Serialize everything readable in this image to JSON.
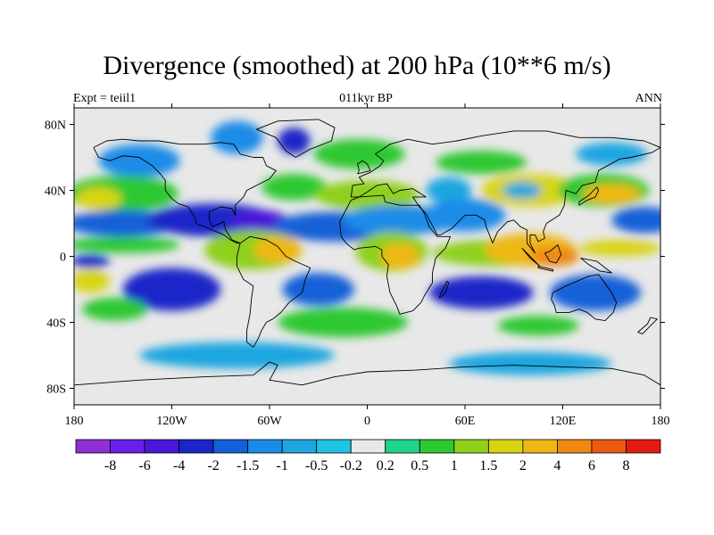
{
  "header": {
    "title": "Divergence (smoothed) at 200 hPa (10**6 m/s)",
    "left": "Expt = teiil1",
    "center": "011kyr BP",
    "right": "ANN"
  },
  "map": {
    "projection": "cylindrical-equidistant",
    "lon_range": [
      -180,
      180
    ],
    "lat_range": [
      -90,
      90
    ],
    "x_ticks": [
      {
        "lon": -180,
        "label": "180"
      },
      {
        "lon": -120,
        "label": "120W"
      },
      {
        "lon": -60,
        "label": "60W"
      },
      {
        "lon": 0,
        "label": "0"
      },
      {
        "lon": 60,
        "label": "60E"
      },
      {
        "lon": 120,
        "label": "120E"
      },
      {
        "lon": 180,
        "label": "180"
      }
    ],
    "y_ticks": [
      {
        "lat": 80,
        "label": "80N"
      },
      {
        "lat": 40,
        "label": "40N"
      },
      {
        "lat": 0,
        "label": "0"
      },
      {
        "lat": -40,
        "label": "40S"
      },
      {
        "lat": -80,
        "label": "80S"
      }
    ]
  },
  "colorbar": {
    "colors": [
      "#8f2fd8",
      "#6a1fe8",
      "#4a16d8",
      "#1c25c8",
      "#1360d8",
      "#1a8ce8",
      "#1fa6e0",
      "#1ec4e4",
      "#e8e8e8",
      "#1fd48c",
      "#2ec830",
      "#8ed01c",
      "#d8d412",
      "#eeb814",
      "#ee8812",
      "#ea5a10",
      "#e41a10"
    ],
    "labels": [
      "-8",
      "-6",
      "-4",
      "-2",
      "-1.5",
      "-1",
      "-0.5",
      "-0.2",
      "0.2",
      "0.5",
      "1",
      "1.5",
      "2",
      "4",
      "6",
      "8"
    ]
  },
  "field_blobs": [
    {
      "lon": -140,
      "lat": 58,
      "rx": 25,
      "ry": 10,
      "v": "-1"
    },
    {
      "lon": -80,
      "lat": 72,
      "rx": 16,
      "ry": 10,
      "v": "-1"
    },
    {
      "lon": -45,
      "lat": 70,
      "rx": 10,
      "ry": 8,
      "v": "-2"
    },
    {
      "lon": -5,
      "lat": 62,
      "rx": 28,
      "ry": 9,
      "v": "0.5"
    },
    {
      "lon": 70,
      "lat": 57,
      "rx": 28,
      "ry": 7,
      "v": "0.5"
    },
    {
      "lon": 150,
      "lat": 62,
      "rx": 22,
      "ry": 7,
      "v": "-0.5"
    },
    {
      "lon": -150,
      "lat": 38,
      "rx": 34,
      "ry": 11,
      "v": "0.5"
    },
    {
      "lon": -165,
      "lat": 35,
      "rx": 14,
      "ry": 7,
      "v": "1.5"
    },
    {
      "lon": -45,
      "lat": 42,
      "rx": 20,
      "ry": 8,
      "v": "0.5"
    },
    {
      "lon": 0,
      "lat": 37,
      "rx": 32,
      "ry": 9,
      "v": "1"
    },
    {
      "lon": 50,
      "lat": 40,
      "rx": 14,
      "ry": 8,
      "v": "-0.5"
    },
    {
      "lon": 100,
      "lat": 40,
      "rx": 30,
      "ry": 10,
      "v": "1.5"
    },
    {
      "lon": 95,
      "lat": 40,
      "rx": 12,
      "ry": 5,
      "v": "-0.5"
    },
    {
      "lon": 145,
      "lat": 40,
      "rx": 28,
      "ry": 10,
      "v": "0.5"
    },
    {
      "lon": 150,
      "lat": 38,
      "rx": 18,
      "ry": 6,
      "v": "2"
    },
    {
      "lon": -150,
      "lat": 20,
      "rx": 35,
      "ry": 8,
      "v": "-1.5"
    },
    {
      "lon": -95,
      "lat": 22,
      "rx": 40,
      "ry": 10,
      "v": "-2"
    },
    {
      "lon": -65,
      "lat": 20,
      "rx": 18,
      "ry": 8,
      "v": "-4"
    },
    {
      "lon": -20,
      "lat": 18,
      "rx": 38,
      "ry": 9,
      "v": "-1.5"
    },
    {
      "lon": 20,
      "lat": 22,
      "rx": 35,
      "ry": 9,
      "v": "-1"
    },
    {
      "lon": 60,
      "lat": 25,
      "rx": 25,
      "ry": 10,
      "v": "-1"
    },
    {
      "lon": 170,
      "lat": 22,
      "rx": 20,
      "ry": 8,
      "v": "-1.5"
    },
    {
      "lon": -150,
      "lat": 7,
      "rx": 35,
      "ry": 5,
      "v": "0.5"
    },
    {
      "lon": -70,
      "lat": 4,
      "rx": 30,
      "ry": 12,
      "v": "1"
    },
    {
      "lon": -55,
      "lat": 4,
      "rx": 15,
      "ry": 8,
      "v": "2"
    },
    {
      "lon": 15,
      "lat": 3,
      "rx": 22,
      "ry": 12,
      "v": "1"
    },
    {
      "lon": 20,
      "lat": 0,
      "rx": 12,
      "ry": 8,
      "v": "2"
    },
    {
      "lon": 80,
      "lat": 2,
      "rx": 40,
      "ry": 8,
      "v": "1"
    },
    {
      "lon": 100,
      "lat": 4,
      "rx": 28,
      "ry": 10,
      "v": "2"
    },
    {
      "lon": 115,
      "lat": 0,
      "rx": 15,
      "ry": 6,
      "v": "4"
    },
    {
      "lon": 155,
      "lat": 5,
      "rx": 25,
      "ry": 5,
      "v": "1.5"
    },
    {
      "lon": -170,
      "lat": -3,
      "rx": 12,
      "ry": 4,
      "v": "-2"
    },
    {
      "lon": -120,
      "lat": -20,
      "rx": 30,
      "ry": 13,
      "v": "-2"
    },
    {
      "lon": -30,
      "lat": -20,
      "rx": 22,
      "ry": 10,
      "v": "-1.5"
    },
    {
      "lon": 70,
      "lat": -22,
      "rx": 32,
      "ry": 10,
      "v": "-2"
    },
    {
      "lon": 140,
      "lat": -22,
      "rx": 28,
      "ry": 11,
      "v": "-1.5"
    },
    {
      "lon": -170,
      "lat": -15,
      "rx": 12,
      "ry": 7,
      "v": "1.5"
    },
    {
      "lon": -155,
      "lat": -32,
      "rx": 20,
      "ry": 7,
      "v": "0.5"
    },
    {
      "lon": -15,
      "lat": -40,
      "rx": 40,
      "ry": 9,
      "v": "0.5"
    },
    {
      "lon": 105,
      "lat": -42,
      "rx": 25,
      "ry": 6,
      "v": "0.5"
    },
    {
      "lon": -80,
      "lat": -60,
      "rx": 60,
      "ry": 8,
      "v": "-0.5"
    },
    {
      "lon": 100,
      "lat": -65,
      "rx": 50,
      "ry": 7,
      "v": "-0.5"
    }
  ],
  "coastlines": [
    [
      [
        -168,
        66
      ],
      [
        -160,
        70
      ],
      [
        -150,
        71
      ],
      [
        -140,
        70
      ],
      [
        -128,
        70
      ],
      [
        -115,
        68
      ],
      [
        -100,
        68
      ],
      [
        -90,
        69
      ],
      [
        -82,
        68
      ],
      [
        -78,
        62
      ],
      [
        -70,
        60
      ],
      [
        -64,
        60
      ],
      [
        -62,
        55
      ],
      [
        -56,
        52
      ],
      [
        -60,
        47
      ],
      [
        -66,
        44
      ],
      [
        -70,
        42
      ],
      [
        -74,
        40
      ],
      [
        -76,
        36
      ],
      [
        -81,
        31
      ],
      [
        -81,
        25
      ],
      [
        -83,
        29
      ],
      [
        -90,
        30
      ],
      [
        -97,
        27
      ],
      [
        -97,
        22
      ],
      [
        -95,
        18
      ],
      [
        -88,
        21
      ],
      [
        -87,
        16
      ],
      [
        -83,
        10
      ],
      [
        -78,
        8
      ],
      [
        -80,
        8
      ],
      [
        -84,
        10
      ],
      [
        -88,
        13
      ],
      [
        -95,
        16
      ],
      [
        -105,
        20
      ],
      [
        -106,
        24
      ],
      [
        -110,
        30
      ],
      [
        -116,
        32
      ],
      [
        -120,
        35
      ],
      [
        -124,
        40
      ],
      [
        -124,
        46
      ],
      [
        -127,
        50
      ],
      [
        -132,
        55
      ],
      [
        -140,
        60
      ],
      [
        -150,
        61
      ],
      [
        -158,
        58
      ],
      [
        -165,
        60
      ],
      [
        -168,
        66
      ]
    ],
    [
      [
        -78,
        8
      ],
      [
        -72,
        12
      ],
      [
        -62,
        10
      ],
      [
        -55,
        6
      ],
      [
        -50,
        0
      ],
      [
        -44,
        -3
      ],
      [
        -35,
        -7
      ],
      [
        -38,
        -14
      ],
      [
        -40,
        -22
      ],
      [
        -48,
        -28
      ],
      [
        -53,
        -34
      ],
      [
        -58,
        -38
      ],
      [
        -62,
        -40
      ],
      [
        -65,
        -45
      ],
      [
        -67,
        -50
      ],
      [
        -70,
        -55
      ],
      [
        -74,
        -52
      ],
      [
        -74,
        -45
      ],
      [
        -72,
        -35
      ],
      [
        -71,
        -25
      ],
      [
        -70,
        -18
      ],
      [
        -76,
        -14
      ],
      [
        -80,
        -6
      ],
      [
        -80,
        0
      ],
      [
        -78,
        8
      ]
    ],
    [
      [
        -55,
        82
      ],
      [
        -30,
        83
      ],
      [
        -20,
        78
      ],
      [
        -22,
        70
      ],
      [
        -35,
        65
      ],
      [
        -44,
        60
      ],
      [
        -50,
        64
      ],
      [
        -56,
        72
      ],
      [
        -68,
        77
      ],
      [
        -55,
        82
      ]
    ],
    [
      [
        -10,
        36
      ],
      [
        -9,
        43
      ],
      [
        -2,
        44
      ],
      [
        -5,
        48
      ],
      [
        2,
        51
      ],
      [
        8,
        55
      ],
      [
        10,
        58
      ],
      [
        5,
        62
      ],
      [
        14,
        68
      ],
      [
        25,
        71
      ],
      [
        40,
        68
      ],
      [
        55,
        70
      ],
      [
        70,
        73
      ],
      [
        90,
        76
      ],
      [
        110,
        76
      ],
      [
        130,
        72
      ],
      [
        150,
        72
      ],
      [
        170,
        70
      ],
      [
        180,
        66
      ],
      [
        175,
        63
      ],
      [
        162,
        60
      ],
      [
        155,
        59
      ],
      [
        142,
        52
      ],
      [
        140,
        45
      ],
      [
        132,
        43
      ],
      [
        128,
        38
      ],
      [
        122,
        40
      ],
      [
        121,
        31
      ],
      [
        118,
        25
      ],
      [
        110,
        20
      ],
      [
        108,
        15
      ],
      [
        109,
        11
      ],
      [
        105,
        9
      ],
      [
        103,
        13
      ],
      [
        100,
        13
      ],
      [
        100,
        8
      ],
      [
        103,
        2
      ],
      [
        98,
        8
      ],
      [
        98,
        16
      ],
      [
        94,
        18
      ],
      [
        90,
        22
      ],
      [
        86,
        21
      ],
      [
        80,
        15
      ],
      [
        77,
        8
      ],
      [
        73,
        18
      ],
      [
        72,
        22
      ],
      [
        67,
        25
      ],
      [
        60,
        25
      ],
      [
        57,
        22
      ],
      [
        52,
        17
      ],
      [
        45,
        13
      ],
      [
        43,
        13
      ],
      [
        36,
        26
      ],
      [
        32,
        30
      ],
      [
        28,
        36
      ],
      [
        36,
        36
      ],
      [
        28,
        41
      ],
      [
        20,
        40
      ],
      [
        16,
        38
      ],
      [
        12,
        44
      ],
      [
        6,
        43
      ],
      [
        0,
        39
      ],
      [
        -5,
        36
      ],
      [
        -10,
        36
      ]
    ],
    [
      [
        -17,
        21
      ],
      [
        -10,
        34
      ],
      [
        -5,
        36
      ],
      [
        10,
        37
      ],
      [
        11,
        33
      ],
      [
        20,
        31
      ],
      [
        32,
        31
      ],
      [
        35,
        26
      ],
      [
        38,
        18
      ],
      [
        43,
        12
      ],
      [
        51,
        12
      ],
      [
        48,
        5
      ],
      [
        42,
        -1
      ],
      [
        40,
        -10
      ],
      [
        40,
        -16
      ],
      [
        35,
        -24
      ],
      [
        33,
        -28
      ],
      [
        28,
        -33
      ],
      [
        20,
        -35
      ],
      [
        18,
        -30
      ],
      [
        14,
        -22
      ],
      [
        12,
        -12
      ],
      [
        13,
        -5
      ],
      [
        9,
        0
      ],
      [
        9,
        4
      ],
      [
        5,
        6
      ],
      [
        -5,
        5
      ],
      [
        -8,
        4
      ],
      [
        -13,
        8
      ],
      [
        -16,
        12
      ],
      [
        -17,
        21
      ]
    ],
    [
      [
        114,
        -22
      ],
      [
        122,
        -18
      ],
      [
        129,
        -15
      ],
      [
        136,
        -12
      ],
      [
        142,
        -11
      ],
      [
        145,
        -15
      ],
      [
        150,
        -22
      ],
      [
        153,
        -28
      ],
      [
        151,
        -34
      ],
      [
        146,
        -39
      ],
      [
        140,
        -38
      ],
      [
        135,
        -34
      ],
      [
        130,
        -32
      ],
      [
        124,
        -34
      ],
      [
        116,
        -34
      ],
      [
        115,
        -30
      ],
      [
        113,
        -26
      ],
      [
        114,
        -22
      ]
    ],
    [
      [
        44,
        -25
      ],
      [
        49,
        -15
      ],
      [
        50,
        -16
      ],
      [
        48,
        -22
      ],
      [
        45,
        -25
      ],
      [
        44,
        -25
      ]
    ],
    [
      [
        130,
        31
      ],
      [
        135,
        34
      ],
      [
        140,
        36
      ],
      [
        142,
        40
      ],
      [
        141,
        42
      ],
      [
        136,
        37
      ],
      [
        130,
        33
      ],
      [
        130,
        31
      ]
    ],
    [
      [
        95,
        5
      ],
      [
        105,
        -5
      ],
      [
        106,
        -6
      ],
      [
        100,
        -1
      ],
      [
        95,
        5
      ]
    ],
    [
      [
        109,
        2
      ],
      [
        112,
        -3
      ],
      [
        116,
        -4
      ],
      [
        119,
        1
      ],
      [
        117,
        7
      ],
      [
        112,
        3
      ],
      [
        109,
        2
      ]
    ],
    [
      [
        105,
        -6
      ],
      [
        114,
        -8
      ],
      [
        114,
        -9
      ],
      [
        105,
        -7
      ],
      [
        105,
        -6
      ]
    ],
    [
      [
        131,
        -1
      ],
      [
        141,
        -3
      ],
      [
        150,
        -10
      ],
      [
        143,
        -9
      ],
      [
        136,
        -5
      ],
      [
        131,
        -1
      ]
    ],
    [
      [
        166,
        -46
      ],
      [
        172,
        -41
      ],
      [
        174,
        -37
      ],
      [
        178,
        -38
      ],
      [
        174,
        -42
      ],
      [
        169,
        -47
      ],
      [
        166,
        -46
      ]
    ],
    [
      [
        -6,
        50
      ],
      [
        2,
        52
      ],
      [
        0,
        56
      ],
      [
        -3,
        58
      ],
      [
        -6,
        56
      ],
      [
        -5,
        52
      ],
      [
        -6,
        50
      ]
    ],
    [
      [
        -180,
        -78
      ],
      [
        -140,
        -75
      ],
      [
        -100,
        -73
      ],
      [
        -70,
        -72
      ],
      [
        -60,
        -64
      ],
      [
        -55,
        -66
      ],
      [
        -60,
        -75
      ],
      [
        -40,
        -78
      ],
      [
        -20,
        -73
      ],
      [
        0,
        -70
      ],
      [
        30,
        -69
      ],
      [
        60,
        -67
      ],
      [
        90,
        -66
      ],
      [
        120,
        -67
      ],
      [
        150,
        -68
      ],
      [
        170,
        -72
      ],
      [
        180,
        -78
      ]
    ]
  ]
}
